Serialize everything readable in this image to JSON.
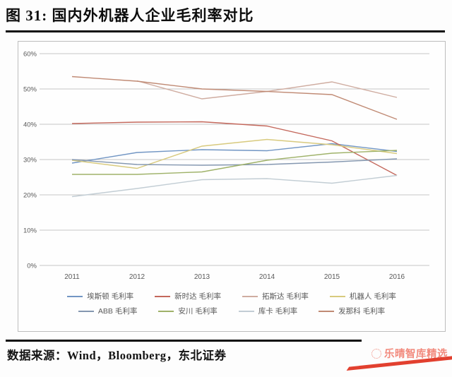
{
  "title": "图 31: 国内外机器人企业毛利率对比",
  "source_text": "数据来源：Wind，Bloomberg，东北证券",
  "logo": {
    "text": "乐晴智库精选",
    "color": "#f28a7d",
    "swoosh_color": "#e2402f"
  },
  "chart_data": {
    "type": "line",
    "x": [
      "2011",
      "2012",
      "2013",
      "2014",
      "2015",
      "2016"
    ],
    "yticks": [
      "0%",
      "10%",
      "20%",
      "30%",
      "40%",
      "50%",
      "60%"
    ],
    "ylim": [
      0,
      60
    ],
    "ytick_step": 10,
    "grid": true,
    "legend_position": "bottom",
    "axis_text_color": "#595959",
    "gridline_color": "#c6c6c6",
    "series": [
      {
        "key": "estun",
        "name": "埃斯顿",
        "legend_label": "埃斯顿 毛利率",
        "color": "#7296c4",
        "values": [
          29.0,
          32.0,
          32.8,
          32.5,
          34.5,
          32.3
        ]
      },
      {
        "key": "step",
        "name": "新时达",
        "legend_label": "新时达 毛利率",
        "color": "#c4685c",
        "values": [
          40.2,
          40.6,
          40.7,
          39.5,
          35.3,
          25.5
        ]
      },
      {
        "key": "topstar",
        "name": "拓斯达",
        "legend_label": "拓斯达 毛利率",
        "color": "#cfaca0",
        "values": [
          null,
          52.3,
          47.2,
          49.3,
          52.0,
          47.6
        ]
      },
      {
        "key": "siasun",
        "name": "机器人",
        "legend_label": "机器人 毛利率",
        "color": "#d8ca7e",
        "values": [
          29.8,
          27.5,
          33.8,
          35.7,
          34.2,
          31.7
        ]
      },
      {
        "key": "abb",
        "name": "ABB",
        "legend_label": "ABB 毛利率",
        "color": "#8497b0",
        "values": [
          30.0,
          28.6,
          28.4,
          28.6,
          29.3,
          30.2
        ]
      },
      {
        "key": "yaskawa",
        "name": "安川",
        "legend_label": "安川 毛利率",
        "color": "#9fb269",
        "values": [
          25.8,
          25.8,
          26.5,
          29.8,
          31.8,
          32.6
        ]
      },
      {
        "key": "kuka",
        "name": "库卡",
        "legend_label": "库卡 毛利率",
        "color": "#c2cdd4",
        "values": [
          19.5,
          21.8,
          24.3,
          24.6,
          23.3,
          25.5
        ]
      },
      {
        "key": "fanuc",
        "name": "发那科",
        "legend_label": "发那科 毛利率",
        "color": "#c08a74",
        "values": [
          53.5,
          52.2,
          50.0,
          49.3,
          48.4,
          41.4
        ]
      }
    ]
  }
}
